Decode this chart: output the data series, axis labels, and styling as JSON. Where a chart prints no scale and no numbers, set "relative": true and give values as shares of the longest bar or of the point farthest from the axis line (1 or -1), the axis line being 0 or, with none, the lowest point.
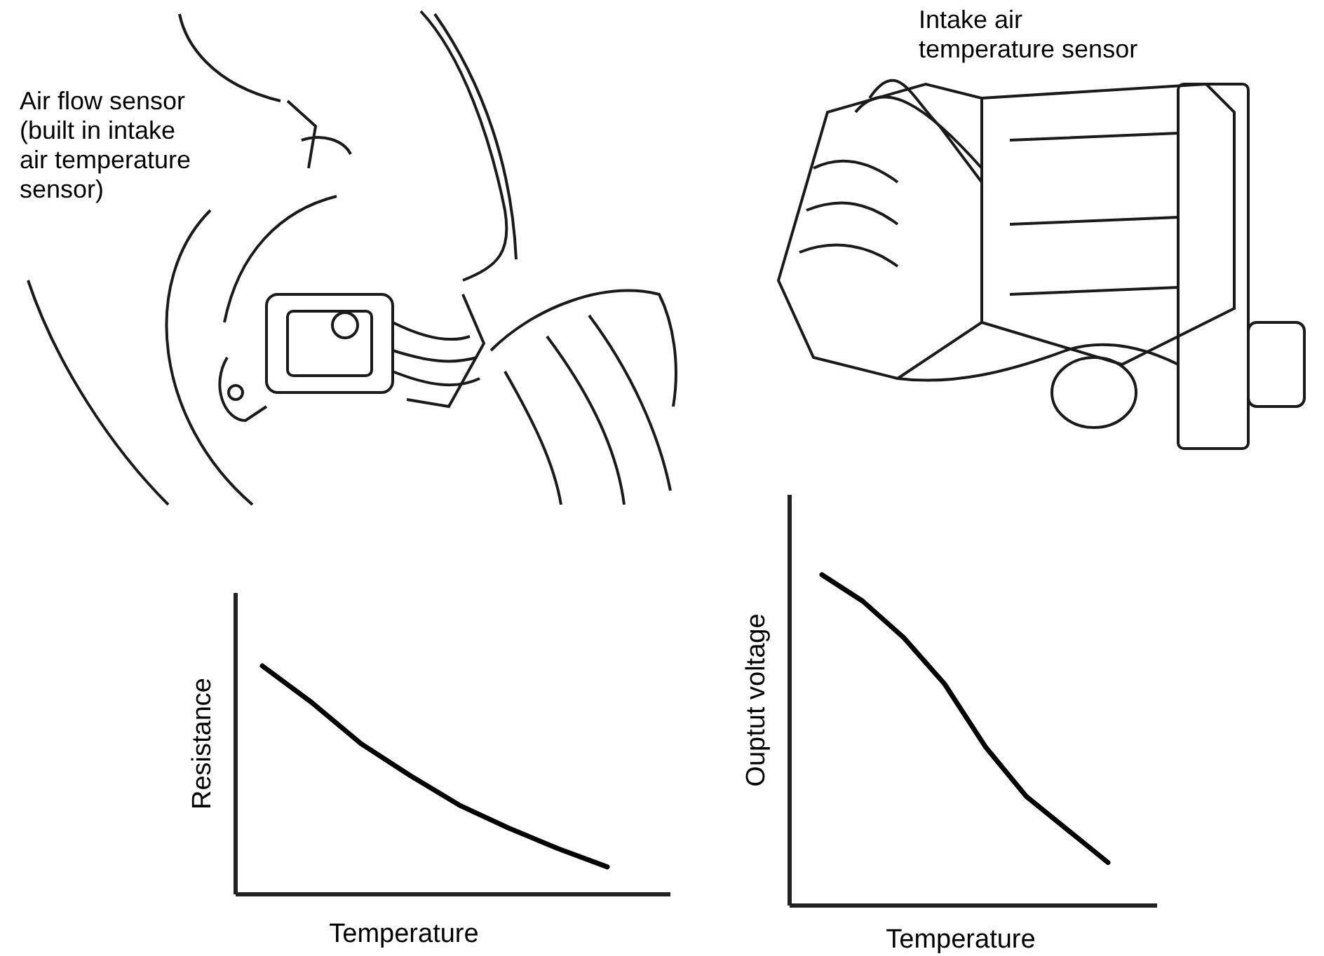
{
  "chart_data": [
    {
      "type": "line",
      "relative": true,
      "xlabel": "Temperature",
      "ylabel": "Resistance",
      "categories": [
        null,
        null,
        null,
        null,
        null,
        null,
        null,
        null
      ],
      "series": [
        {
          "color": "#000000",
          "values": [
            1,
            0.84,
            0.66,
            0.52,
            0.39,
            0.29,
            0.2,
            0.12
          ]
        }
      ],
      "annotations": [
        "Air flow sensor (built in intake air temperature sensor)"
      ]
    },
    {
      "type": "line",
      "relative": true,
      "xlabel": "Temperature",
      "ylabel": "Ouptut voltage",
      "categories": [
        null,
        null,
        null,
        null,
        null,
        null,
        null,
        null
      ],
      "series": [
        {
          "color": "#000000",
          "values": [
            1,
            0.92,
            0.81,
            0.67,
            0.48,
            0.33,
            0.23,
            0.13
          ]
        }
      ],
      "annotations": [
        "Intake air temperature sensor"
      ]
    }
  ]
}
